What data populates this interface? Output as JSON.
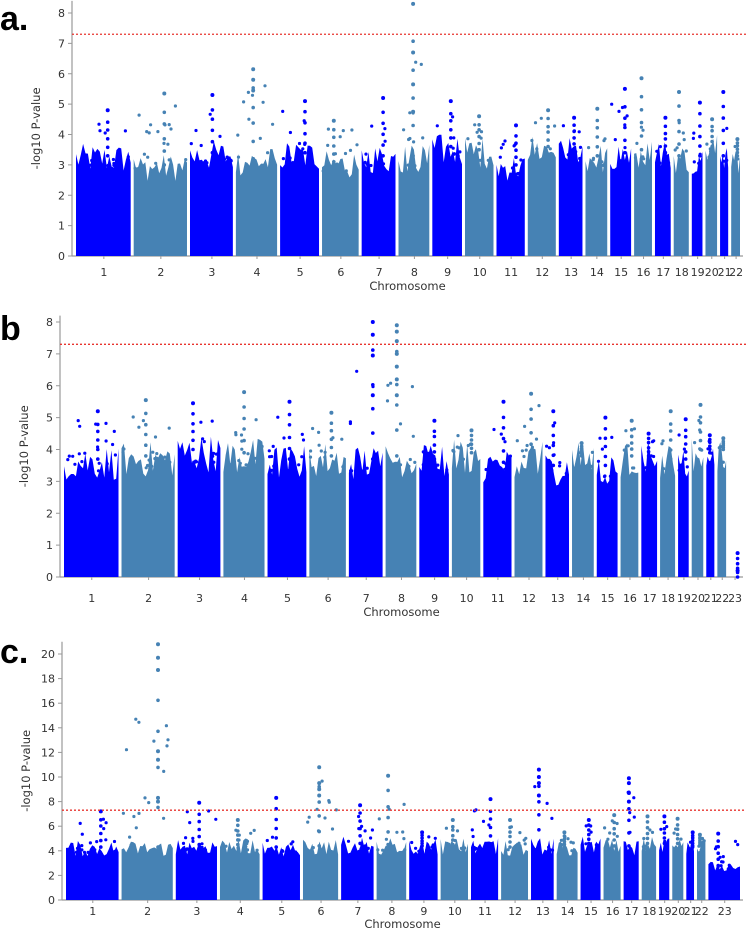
{
  "chart_data": [
    {
      "type": "scatter",
      "subtype": "manhattan",
      "panel_label": "a.",
      "xlabel": "Chromosome",
      "ylabel": "-log10 P-value",
      "ylim": [
        0,
        8.4
      ],
      "yticks": [
        0,
        1,
        2,
        3,
        4,
        5,
        6,
        7,
        8
      ],
      "significance_threshold": 7.3,
      "chromosomes": [
        "1",
        "2",
        "3",
        "4",
        "5",
        "6",
        "7",
        "8",
        "9",
        "10",
        "11",
        "12",
        "13",
        "14",
        "15",
        "16",
        "17",
        "18",
        "19",
        "20",
        "21",
        "22"
      ],
      "relative_lengths": [
        249,
        243,
        198,
        191,
        181,
        171,
        159,
        146,
        141,
        136,
        135,
        134,
        115,
        107,
        103,
        90,
        81,
        78,
        59,
        63,
        48,
        51
      ],
      "dense_top": [
        3.3,
        3.0,
        3.4,
        3.2,
        3.4,
        3.1,
        3.3,
        3.3,
        3.6,
        3.5,
        3.0,
        3.6,
        3.5,
        3.3,
        3.4,
        3.5,
        3.4,
        3.3,
        3.3,
        3.6,
        3.3,
        3.3
      ],
      "peak_values": [
        4.8,
        5.35,
        5.3,
        6.15,
        5.1,
        4.45,
        5.2,
        8.3,
        5.1,
        4.6,
        4.3,
        4.8,
        4.55,
        4.85,
        5.5,
        5.85,
        4.55,
        5.4,
        5.05,
        4.5,
        5.4,
        3.85
      ],
      "extra_points": [
        {
          "chromosome": "8",
          "values": [
            6.7,
            5.65,
            4.75
          ]
        },
        {
          "chromosome": "4",
          "values": [
            5.8,
            5.45
          ]
        }
      ]
    },
    {
      "type": "scatter",
      "subtype": "manhattan",
      "panel_label": "b",
      "xlabel": "Chromosome",
      "ylabel": "-log10 P-value",
      "ylim": [
        0,
        8.2
      ],
      "yticks": [
        0,
        1,
        2,
        3,
        4,
        5,
        6,
        7,
        8
      ],
      "significance_threshold": 7.3,
      "chromosomes": [
        "1",
        "2",
        "3",
        "4",
        "5",
        "6",
        "7",
        "8",
        "9",
        "10",
        "11",
        "12",
        "13",
        "14",
        "15",
        "16",
        "17",
        "18",
        "19",
        "20",
        "21",
        "22",
        "23"
      ],
      "relative_lengths": [
        249,
        243,
        198,
        191,
        181,
        171,
        159,
        146,
        141,
        136,
        135,
        134,
        115,
        107,
        103,
        90,
        81,
        78,
        59,
        63,
        48,
        51,
        60
      ],
      "dense_top": [
        3.7,
        3.8,
        4.0,
        3.9,
        3.7,
        3.8,
        3.7,
        3.8,
        3.7,
        3.9,
        3.6,
        3.8,
        3.5,
        3.8,
        3.5,
        3.8,
        3.8,
        3.7,
        3.7,
        4.0,
        3.9,
        4.0,
        0.0
      ],
      "peak_values": [
        5.2,
        5.55,
        5.45,
        5.8,
        5.5,
        5.15,
        8.0,
        7.9,
        4.9,
        4.6,
        5.5,
        5.75,
        5.2,
        4.2,
        5.0,
        4.9,
        4.5,
        5.2,
        4.95,
        5.4,
        4.45,
        4.35,
        0.75
      ],
      "extra_points": [
        {
          "chromosome": "7",
          "values": [
            7.6,
            6.95,
            5.7
          ]
        },
        {
          "chromosome": "8",
          "values": [
            7.7,
            7.4,
            7.0,
            6.6,
            6.2,
            5.7
          ]
        },
        {
          "chromosome": "23",
          "values": [
            0.2
          ]
        }
      ]
    },
    {
      "type": "scatter",
      "subtype": "manhattan",
      "panel_label": "c.",
      "xlabel": "Chromosome",
      "ylabel": "-log10 P-value",
      "ylim": [
        0,
        21
      ],
      "yticks": [
        0,
        2,
        4,
        6,
        8,
        10,
        12,
        14,
        16,
        18,
        20
      ],
      "significance_threshold": 7.3,
      "chromosomes": [
        "1",
        "2",
        "3",
        "4",
        "5",
        "6",
        "7",
        "8",
        "9",
        "10",
        "11",
        "12",
        "13",
        "14",
        "15",
        "16",
        "17",
        "18",
        "19",
        "20",
        "21",
        "22",
        "23"
      ],
      "relative_lengths": [
        249,
        243,
        198,
        191,
        181,
        171,
        159,
        146,
        141,
        136,
        135,
        134,
        115,
        107,
        103,
        90,
        81,
        78,
        59,
        63,
        48,
        51,
        155
      ],
      "dense_top": [
        4.3,
        4.3,
        4.5,
        4.5,
        4.3,
        4.4,
        4.6,
        4.5,
        4.4,
        4.5,
        4.5,
        4.3,
        4.5,
        4.3,
        4.6,
        4.4,
        4.4,
        4.6,
        4.6,
        4.6,
        4.4,
        4.5,
        2.8
      ],
      "peak_values": [
        7.2,
        20.8,
        7.9,
        6.5,
        8.3,
        10.8,
        7.7,
        10.1,
        5.5,
        6.5,
        8.2,
        6.5,
        10.6,
        5.5,
        6.5,
        6.9,
        9.9,
        6.8,
        6.8,
        6.6,
        5.5,
        5.3,
        5.4
      ],
      "extra_points": [
        {
          "chromosome": "2",
          "values": [
            19.7,
            18.7,
            12.1,
            11.4,
            8.3,
            8.0
          ]
        },
        {
          "chromosome": "6",
          "values": [
            9.5,
            9.0,
            8.5
          ]
        },
        {
          "chromosome": "13",
          "values": [
            10.0,
            9.5,
            8.5
          ]
        },
        {
          "chromosome": "17",
          "values": [
            9.5,
            8.7,
            8.0
          ]
        }
      ]
    }
  ],
  "colors": {
    "odd": "#0000ff",
    "even": "#4682b4",
    "threshold": "#e8342f",
    "axis": "#999999"
  }
}
